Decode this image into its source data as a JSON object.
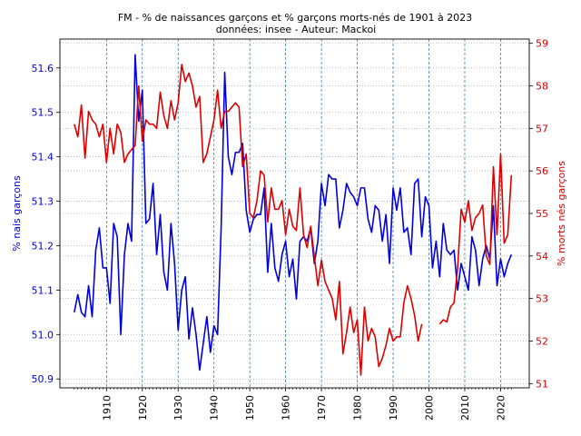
{
  "chart_data": {
    "type": "line",
    "title": "FM - % de naissances garçons et % garçons morts-nés de 1901 à 2023",
    "subtitle": "données: insee - Auteur: Mackoi",
    "xlabel": "",
    "xlim": [
      1897,
      2028
    ],
    "x_ticks": [
      1910,
      1920,
      1930,
      1940,
      1950,
      1960,
      1970,
      1980,
      1990,
      2000,
      2010,
      2020
    ],
    "x_tick_labels": [
      "1910",
      "1920",
      "1930",
      "1940",
      "1950",
      "1960",
      "1970",
      "1980",
      "1990",
      "2000",
      "2010",
      "2020"
    ],
    "vertical_gridlines_at": [
      1910,
      1920,
      1930,
      1940,
      1950,
      1960,
      1970,
      1980,
      1990,
      2000,
      2010,
      2020
    ],
    "left_axis": {
      "label": "% nais garçons",
      "color": "#0000dd",
      "ylim": [
        50.88,
        51.665
      ],
      "ticks": [
        50.9,
        51.0,
        51.1,
        51.2,
        51.3,
        51.4,
        51.5,
        51.6
      ],
      "tick_labels": [
        "50.9",
        "51.0",
        "51.1",
        "51.2",
        "51.3",
        "51.4",
        "51.5",
        "51.6"
      ]
    },
    "right_axis": {
      "label": "% morts nés garçons",
      "color": "#dd0000",
      "ylim": [
        50.9,
        59.1
      ],
      "ticks": [
        51,
        52,
        53,
        54,
        55,
        56,
        57,
        58,
        59
      ],
      "tick_labels": [
        "51",
        "52",
        "53",
        "54",
        "55",
        "56",
        "57",
        "58",
        "59"
      ]
    },
    "series": [
      {
        "name": "% nais garçons",
        "axis": "left",
        "color": "#0000dd",
        "x_start": 1901,
        "values": [
          51.05,
          51.09,
          51.05,
          51.04,
          51.11,
          51.04,
          51.19,
          51.24,
          51.15,
          51.15,
          51.07,
          51.25,
          51.22,
          51.0,
          51.18,
          51.25,
          51.21,
          51.63,
          51.48,
          51.55,
          51.25,
          51.26,
          51.34,
          51.18,
          51.27,
          51.14,
          51.1,
          51.25,
          51.16,
          51.01,
          51.1,
          51.13,
          50.99,
          51.06,
          51.0,
          50.92,
          50.98,
          51.04,
          50.96,
          51.02,
          51.0,
          51.24,
          51.59,
          51.4,
          51.36,
          51.41,
          51.41,
          51.43,
          51.28,
          51.23,
          51.26,
          51.27,
          51.27,
          51.33,
          51.14,
          51.25,
          51.15,
          51.12,
          51.18,
          51.21,
          51.13,
          51.17,
          51.08,
          51.21,
          51.22,
          51.21,
          51.24,
          51.16,
          51.21,
          51.34,
          51.29,
          51.36,
          51.35,
          51.35,
          51.24,
          51.28,
          51.34,
          51.32,
          51.31,
          51.29,
          51.33,
          51.33,
          51.26,
          51.23,
          51.29,
          51.28,
          51.21,
          51.27,
          51.16,
          51.33,
          51.28,
          51.33,
          51.23,
          51.24,
          51.18,
          51.34,
          51.35,
          51.22,
          51.31,
          51.29,
          51.15,
          51.21,
          51.13,
          51.25,
          51.19,
          51.18,
          51.19,
          51.1,
          51.16,
          51.13,
          51.1,
          51.22,
          51.19,
          51.11,
          51.17,
          51.2,
          51.17,
          51.29,
          51.11,
          51.17,
          51.13,
          51.16,
          51.18
        ]
      },
      {
        "name": "% morts nés garçons",
        "axis": "right",
        "color": "#dd0000",
        "x_start": 1901,
        "values": [
          57.1,
          56.8,
          57.55,
          56.3,
          57.4,
          57.2,
          57.1,
          56.8,
          57.1,
          56.2,
          57.0,
          56.4,
          57.1,
          56.9,
          56.2,
          56.4,
          56.5,
          56.6,
          58.0,
          56.7,
          57.2,
          57.1,
          57.1,
          57.0,
          57.85,
          57.3,
          57.0,
          57.65,
          57.2,
          57.6,
          58.5,
          58.1,
          58.3,
          58.0,
          57.5,
          57.75,
          56.2,
          56.4,
          56.8,
          57.2,
          57.9,
          57.0,
          57.4,
          57.4,
          57.5,
          57.6,
          57.5,
          56.1,
          56.4,
          55.0,
          54.9,
          55.3,
          56.0,
          55.9,
          54.8,
          55.6,
          55.1,
          55.1,
          55.3,
          54.5,
          55.1,
          54.7,
          54.6,
          55.6,
          54.5,
          54.2,
          54.7,
          54.0,
          53.3,
          53.9,
          53.4,
          53.2,
          53.0,
          52.5,
          53.4,
          51.7,
          52.2,
          52.8,
          52.2,
          52.5,
          51.2,
          52.8,
          52.0,
          52.3,
          52.1,
          51.4,
          51.6,
          51.9,
          52.3,
          52.0,
          52.1,
          52.1,
          52.9,
          53.3,
          53.0,
          52.6,
          52.0,
          52.4,
          null,
          null,
          null,
          null,
          52.4,
          52.5,
          52.45,
          52.8,
          52.9,
          53.7,
          55.1,
          54.8,
          55.3,
          54.6,
          54.9,
          55.0,
          55.2,
          54.0,
          53.8,
          56.1,
          54.5,
          56.4,
          54.3,
          54.5,
          55.9
        ]
      }
    ]
  }
}
